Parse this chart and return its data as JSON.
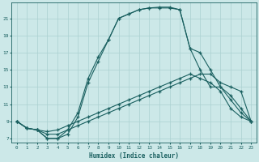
{
  "xlabel": "Humidex (Indice chaleur)",
  "bg_color": "#cce8e8",
  "grid_color": "#aad0d0",
  "line_color": "#1a6060",
  "xlim": [
    -0.5,
    23.5
  ],
  "ylim": [
    6.5,
    22.8
  ],
  "xticks": [
    0,
    1,
    2,
    3,
    4,
    5,
    6,
    7,
    8,
    9,
    10,
    11,
    12,
    13,
    14,
    15,
    16,
    17,
    18,
    19,
    20,
    21,
    22,
    23
  ],
  "yticks": [
    7,
    9,
    11,
    13,
    15,
    17,
    19,
    21
  ],
  "line1_x": [
    0,
    1,
    2,
    3,
    4,
    5,
    6,
    7,
    8,
    9,
    10,
    11,
    12,
    13,
    14,
    15,
    16,
    17,
    18,
    19,
    20,
    21,
    22,
    23
  ],
  "line1_y": [
    9,
    8.2,
    8.0,
    7.5,
    7.5,
    8.0,
    8.5,
    9.0,
    9.5,
    10.0,
    10.5,
    11.0,
    11.5,
    12.0,
    12.5,
    13.0,
    13.5,
    14.0,
    14.5,
    14.5,
    13.5,
    13.0,
    12.5,
    9.0
  ],
  "line2_x": [
    0,
    1,
    2,
    3,
    4,
    5,
    6,
    7,
    8,
    9,
    10,
    11,
    12,
    13,
    14,
    15,
    16,
    17,
    18,
    19,
    20,
    21,
    22,
    23
  ],
  "line2_y": [
    9,
    8.2,
    8.0,
    7.8,
    8.0,
    8.5,
    9.0,
    9.5,
    10.0,
    10.5,
    11.0,
    11.5,
    12.0,
    12.5,
    13.0,
    13.5,
    14.0,
    14.5,
    14.0,
    13.5,
    12.5,
    10.5,
    9.5,
    9.0
  ],
  "line3_x": [
    0,
    1,
    2,
    3,
    4,
    5,
    6,
    7,
    8,
    9,
    10,
    11,
    12,
    13,
    14,
    15,
    16,
    17,
    18,
    19,
    20,
    21,
    22,
    23
  ],
  "line3_y": [
    9,
    8.2,
    8.0,
    7.0,
    7.0,
    8.0,
    10.0,
    14.0,
    16.5,
    18.5,
    21.0,
    21.5,
    22.0,
    22.2,
    22.2,
    22.2,
    22.0,
    17.5,
    17.0,
    15.0,
    13.0,
    12.0,
    10.5,
    9.0
  ],
  "line4_x": [
    0,
    1,
    2,
    3,
    4,
    5,
    6,
    7,
    8,
    9,
    10,
    11,
    12,
    13,
    14,
    15,
    16,
    17,
    18,
    19,
    20,
    21,
    22,
    23
  ],
  "line4_y": [
    9,
    8.2,
    8.0,
    7.0,
    7.0,
    7.5,
    9.5,
    13.5,
    16.0,
    18.5,
    21.0,
    21.5,
    22.0,
    22.2,
    22.3,
    22.3,
    22.0,
    17.5,
    15.0,
    13.0,
    13.0,
    11.5,
    10.0,
    9.0
  ]
}
